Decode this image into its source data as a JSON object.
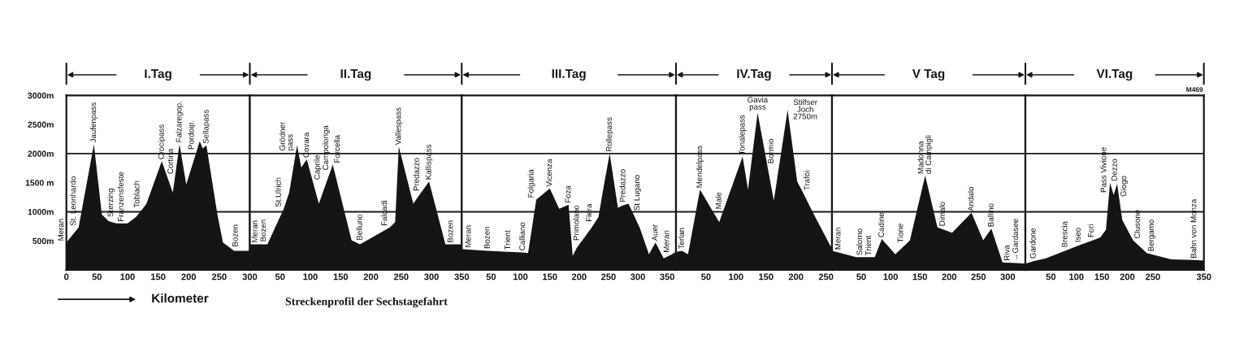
{
  "chart_data": [
    {
      "type": "area",
      "title": "I.Tag",
      "xlabel": "Kilometer",
      "x": [
        0,
        20,
        45,
        58,
        65,
        69,
        82,
        100,
        114,
        124,
        131,
        156,
        171,
        174,
        185,
        196,
        213,
        218,
        223,
        229,
        247,
        256,
        269,
        274,
        300
      ],
      "values": [
        470,
        730,
        2160,
        950,
        880,
        840,
        800,
        800,
        910,
        1040,
        1140,
        1870,
        1420,
        1330,
        2160,
        1470,
        2040,
        2210,
        2090,
        2140,
        950,
        470,
        370,
        330,
        330
      ],
      "color": "#141414",
      "xlim": [
        0,
        300
      ],
      "xticks": [
        0,
        50,
        100,
        150,
        200,
        250,
        300
      ],
      "ylim": [
        0,
        3000
      ],
      "yticks": [
        {
          "value": 500,
          "label": "500m"
        },
        {
          "value": 1000,
          "label": "1000m"
        },
        {
          "value": 1500,
          "label": "1500 m"
        },
        {
          "value": 2000,
          "label": "2000m"
        },
        {
          "value": 2500,
          "label": "2500m"
        },
        {
          "value": 3000,
          "label": "3000m"
        }
      ],
      "ref_lines": [
        {
          "axis": "y",
          "value": 1000,
          "color": "#1a1a1a"
        },
        {
          "axis": "y",
          "value": 2000,
          "color": "#1a1a1a"
        }
      ],
      "annotations": [
        {
          "text": "Meran",
          "x": 0,
          "y": 470
        },
        {
          "text": "St. Leonhardo",
          "x": 20,
          "y": 730
        },
        {
          "text": "Jaufenpass",
          "x": 45,
          "y": 2160
        },
        {
          "text": "Sterzing",
          "x": 65,
          "y": 880
        },
        {
          "text": "Franzensfeste",
          "x": 82,
          "y": 800
        },
        {
          "text": "Toblach",
          "x": 124,
          "y": 1040
        },
        {
          "text": "Crocipass",
          "x": 156,
          "y": 1870
        },
        {
          "text": "Cortina",
          "x": 171,
          "y": 1420
        },
        {
          "text": "Falzaregop.",
          "x": 185,
          "y": 2160
        },
        {
          "text": "Pordoip.",
          "x": 213,
          "y": 2040
        },
        {
          "text": "Sellapass",
          "x": 229,
          "y": 2140
        },
        {
          "text": "Bozen",
          "x": 269,
          "y": 370
        }
      ]
    },
    {
      "type": "area",
      "title": "II.Tag",
      "x": [
        0,
        9,
        23,
        29,
        56,
        65,
        76,
        78,
        85,
        94,
        104,
        114,
        126,
        137,
        168,
        182,
        231,
        240,
        246,
        270,
        276,
        296,
        323,
        332,
        350
      ],
      "values": [
        440,
        440,
        440,
        440,
        1050,
        1330,
        2020,
        2140,
        1760,
        1900,
        1520,
        1140,
        1490,
        1810,
        510,
        440,
        730,
        820,
        2120,
        1140,
        1230,
        1520,
        440,
        440,
        440
      ],
      "color": "#141414",
      "xlim": [
        0,
        350
      ],
      "xticks": [
        50,
        100,
        150,
        200,
        250,
        300,
        350
      ],
      "ylim": [
        0,
        3000
      ],
      "tick_labels": "x",
      "ref_lines": [
        {
          "axis": "y",
          "value": 1000,
          "color": "#1a1a1a"
        },
        {
          "axis": "y",
          "value": 2000,
          "color": "#1a1a1a"
        }
      ],
      "annotations": [
        {
          "text": "Meran",
          "x": 9,
          "y": 440
        },
        {
          "text": "Bozen",
          "x": 23,
          "y": 440
        },
        {
          "text": "St.Ulrich",
          "x": 56,
          "y": 1050
        },
        {
          "text": "Grödner\npass",
          "x": 76,
          "y": 2020
        },
        {
          "text": "Covara",
          "x": 94,
          "y": 1900
        },
        {
          "text": "Caprile",
          "x": 104,
          "y": 1520
        },
        {
          "text": "Campolonga",
          "x": 126,
          "y": 1490
        },
        {
          "text": "Forcella",
          "x": 137,
          "y": 1810
        },
        {
          "text": "Belluno",
          "x": 182,
          "y": 440
        },
        {
          "text": "Falcadi",
          "x": 231,
          "y": 730
        },
        {
          "text": "Vallespass",
          "x": 246,
          "y": 2120
        },
        {
          "text": "Predazzo",
          "x": 276,
          "y": 1230
        },
        {
          "text": "Kallispass",
          "x": 296,
          "y": 1520
        },
        {
          "text": "Bozen",
          "x": 332,
          "y": 440
        },
        "Streckenprofil der Sechstagefahrt"
      ]
    },
    {
      "type": "area",
      "title": "III.Tag",
      "x": [
        0,
        12,
        44,
        79,
        104,
        113,
        127,
        150,
        166,
        182,
        189,
        196,
        220,
        226,
        233,
        240,
        252,
        266,
        275,
        284,
        291,
        303,
        319,
        330,
        344,
        358,
        365
      ],
      "values": [
        360,
        350,
        330,
        310,
        300,
        290,
        1210,
        1400,
        1050,
        1120,
        240,
        380,
        710,
        800,
        910,
        1330,
        2000,
        1070,
        1110,
        1140,
        990,
        730,
        270,
        470,
        200,
        270,
        310
      ],
      "color": "#141414",
      "xlim": [
        0,
        365
      ],
      "xticks": [
        50,
        100,
        150,
        200,
        250,
        300,
        350
      ],
      "ylim": [
        0,
        3000
      ],
      "tick_labels": "x",
      "ref_lines": [
        {
          "axis": "y",
          "value": 1000,
          "color": "#1a1a1a"
        },
        {
          "axis": "y",
          "value": 2000,
          "color": "#1a1a1a"
        }
      ],
      "annotations": [
        {
          "text": "Meran",
          "x": 12,
          "y": 350
        },
        {
          "text": "Bozen",
          "x": 44,
          "y": 330
        },
        {
          "text": "Trient",
          "x": 79,
          "y": 310
        },
        {
          "text": "Calliano",
          "x": 104,
          "y": 300
        },
        {
          "text": "Folgaria",
          "x": 127,
          "y": 1210
        },
        {
          "text": "Vicenza",
          "x": 150,
          "y": 1400
        },
        {
          "text": "Foza",
          "x": 182,
          "y": 1120
        },
        {
          "text": "Primolano",
          "x": 196,
          "y": 380
        },
        {
          "text": "Fiera",
          "x": 226,
          "y": 800
        },
        {
          "text": "Rollepass",
          "x": 252,
          "y": 2000
        },
        {
          "text": "Predazzo",
          "x": 275,
          "y": 1110
        },
        {
          "text": "St Lugano",
          "x": 291,
          "y": 990
        },
        {
          "text": "Auer",
          "x": 330,
          "y": 470
        },
        {
          "text": "Meran",
          "x": 358,
          "y": 270
        }
      ]
    },
    {
      "type": "area",
      "title": "IV.Tag",
      "x": [
        0,
        10,
        20,
        40,
        72,
        111,
        120,
        136,
        163,
        167,
        186,
        202,
        211,
        230,
        257,
        260
      ],
      "values": [
        310,
        330,
        270,
        1380,
        820,
        1950,
        1380,
        2700,
        1190,
        1460,
        2750,
        1520,
        1340,
        950,
        420,
        400
      ],
      "color": "#141414",
      "xlim": [
        0,
        260
      ],
      "xticks": [
        50,
        100,
        150,
        200,
        250
      ],
      "ylim": [
        0,
        3000
      ],
      "tick_labels": "x",
      "ref_lines": [
        {
          "axis": "y",
          "value": 1000,
          "color": "#1a1a1a"
        },
        {
          "axis": "y",
          "value": 2000,
          "color": "#1a1a1a"
        }
      ],
      "annotations": [
        {
          "text": "Terlan",
          "x": 10,
          "y": 330
        },
        {
          "text": "Mendelpass",
          "x": 40,
          "y": 1380
        },
        {
          "text": "Male",
          "x": 72,
          "y": 820
        },
        {
          "text": "Tonalepass",
          "x": 111,
          "y": 1950
        },
        {
          "text": "Gavia\npass",
          "x": 136,
          "y": 2700
        },
        {
          "text": "Bormio",
          "x": 167,
          "y": 1460
        },
        {
          "text": "Stilfser\nJoch\n2750m",
          "x": 186,
          "y": 2750
        },
        {
          "text": "Trafoi",
          "x": 211,
          "y": 1340
        }
      ]
    },
    {
      "type": "area",
      "title": "V Tag",
      "x": [
        0,
        11,
        41,
        48,
        63,
        73,
        85,
        108,
        126,
        133,
        159,
        180,
        189,
        205,
        238,
        258,
        272,
        291,
        314,
        330
      ],
      "values": [
        330,
        300,
        220,
        220,
        220,
        220,
        530,
        270,
        440,
        510,
        1620,
        730,
        700,
        640,
        980,
        510,
        710,
        130,
        120,
        110
      ],
      "color": "#141414",
      "xlim": [
        0,
        330
      ],
      "xticks": [
        50,
        100,
        150,
        200,
        250,
        300
      ],
      "ylim": [
        0,
        3000
      ],
      "tick_labels": "x",
      "ref_lines": [
        {
          "axis": "y",
          "value": 1000,
          "color": "#1a1a1a"
        },
        {
          "axis": "y",
          "value": 2000,
          "color": "#1a1a1a"
        }
      ],
      "annotations": [
        {
          "text": "Meran",
          "x": 11,
          "y": 300
        },
        {
          "text": "Salorno",
          "x": 48,
          "y": 220
        },
        {
          "text": "Trient",
          "x": 63,
          "y": 220
        },
        {
          "text": "Cadine",
          "x": 85,
          "y": 530
        },
        {
          "text": "Tione",
          "x": 126,
          "y": 440
        },
        {
          "text": "Madonna\ndi Campigli",
          "x": 159,
          "y": 1620
        },
        {
          "text": "Dimalo",
          "x": 189,
          "y": 700
        },
        {
          "text": "Andalo",
          "x": 238,
          "y": 980
        },
        {
          "text": "Ballino",
          "x": 272,
          "y": 710
        },
        {
          "text": "Riva",
          "x": 291,
          "y": 130
        },
        {
          "text": "→Gardasee",
          "x": 314,
          "y": 120
        }
      ]
    },
    {
      "type": "area",
      "title": "VI.Tag",
      "x": [
        0,
        16,
        40,
        78,
        104,
        139,
        147,
        158,
        164,
        166,
        173,
        180,
        184,
        190,
        211,
        238,
        286,
        331,
        350
      ],
      "values": [
        110,
        150,
        200,
        330,
        420,
        530,
        560,
        690,
        1300,
        1500,
        1290,
        1480,
        1230,
        860,
        510,
        290,
        180,
        170,
        160
      ],
      "color": "#141414",
      "xlim": [
        0,
        350
      ],
      "xticks": [
        50,
        100,
        150,
        200,
        250,
        350
      ],
      "ylim": [
        0,
        3000
      ],
      "tick_labels": "x",
      "ref_lines": [
        {
          "axis": "y",
          "value": 1000,
          "color": "#1a1a1a"
        },
        {
          "axis": "y",
          "value": 2000,
          "color": "#1a1a1a"
        }
      ],
      "annotations": [
        {
          "text": "Gardone",
          "x": 16,
          "y": 150
        },
        {
          "text": "Brescia",
          "x": 78,
          "y": 330
        },
        {
          "text": "Iseo",
          "x": 104,
          "y": 420
        },
        {
          "text": "Fori",
          "x": 139,
          "y": 530
        },
        {
          "text": "Pass Vivione",
          "x": 164,
          "y": 1300
        },
        {
          "text": "Dezzo",
          "x": 166,
          "y": 1500
        },
        {
          "text": "Giogo",
          "x": 184,
          "y": 1230
        },
        {
          "text": "Clusone",
          "x": 211,
          "y": 510
        },
        {
          "text": "Bergamo",
          "x": 238,
          "y": 290
        },
        {
          "text": "Bahn von Monza",
          "x": 331,
          "y": 170
        },
        "M469"
      ]
    }
  ]
}
